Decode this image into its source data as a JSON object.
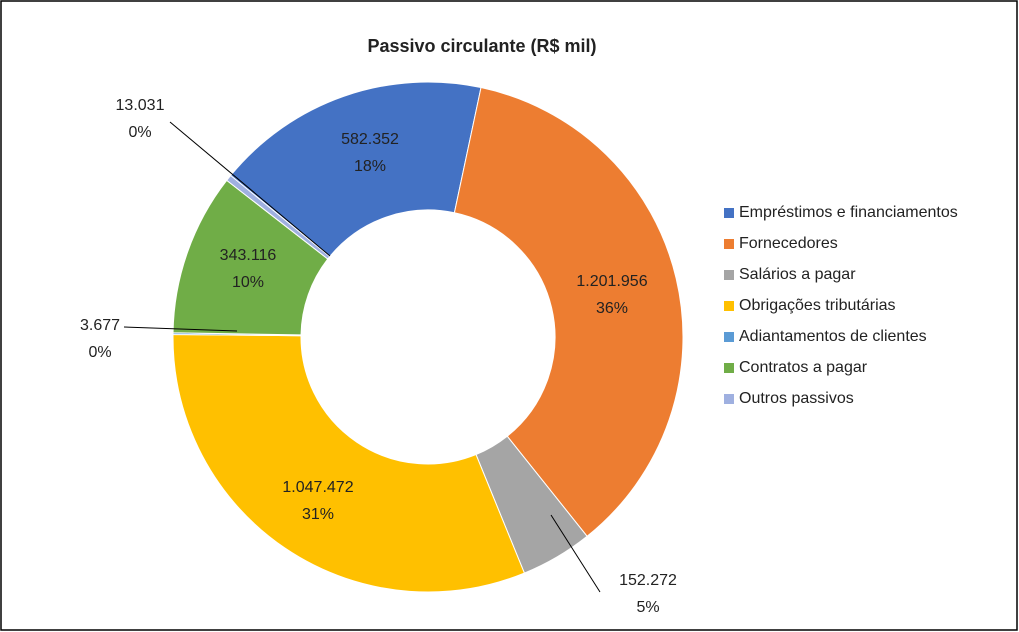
{
  "chart_data": {
    "type": "donut",
    "title": "Passivo circulante (R$ mil)",
    "categories": [
      "Empréstimos e financiamentos",
      "Fornecedores",
      "Salários a pagar",
      "Obrigações tributárias",
      "Adiantamentos de clientes",
      "Contratos a pagar",
      "Outros passivos"
    ],
    "values": [
      582352,
      1201956,
      152272,
      1047472,
      3677,
      343116,
      13031
    ],
    "value_labels": [
      "582.352",
      "1.201.956",
      "152.272",
      "1.047.472",
      "3.677",
      "343.116",
      "13.031"
    ],
    "percent_labels": [
      "18%",
      "36%",
      "5%",
      "31%",
      "0%",
      "10%",
      "0%"
    ],
    "colors": [
      "#4472c4",
      "#ed7d31",
      "#a5a5a5",
      "#ffc000",
      "#5b9bd5",
      "#70ad47",
      "#9fb0e0"
    ],
    "legend": "right"
  }
}
